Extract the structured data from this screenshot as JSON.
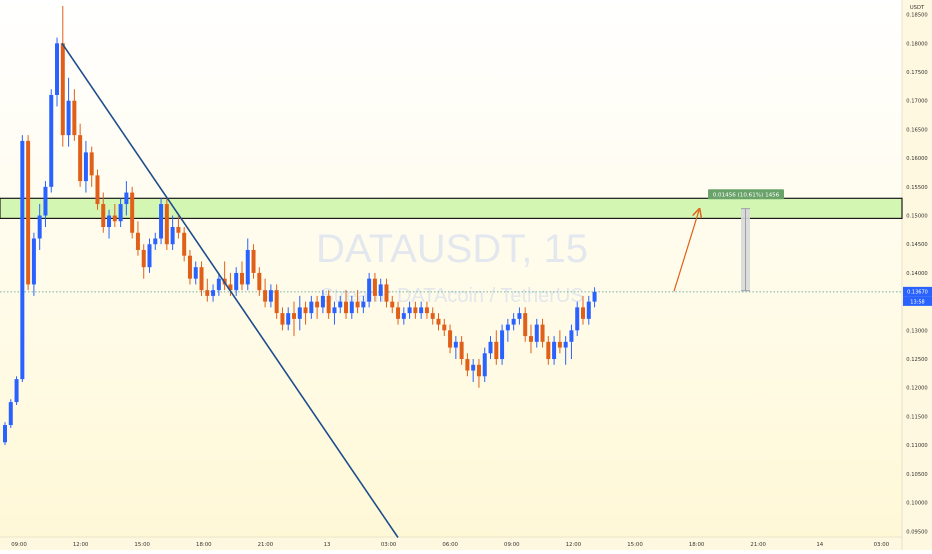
{
  "chart_data": {
    "type": "candlestick",
    "title": "",
    "xlabel": "",
    "ylabel": "",
    "watermark": {
      "symbol": "DATAUSDT, 15",
      "description": "Streamr DATAcoin / TetherUS"
    },
    "currency_label": "USDT",
    "ylim": [
      0.094,
      0.1865
    ],
    "y_ticks": [
      "0.18500",
      "0.18000",
      "0.17500",
      "0.17000",
      "0.16500",
      "0.16000",
      "0.15500",
      "0.15000",
      "0.14500",
      "0.14000",
      "0.13500",
      "0.13000",
      "0.12500",
      "0.12000",
      "0.11500",
      "0.11000",
      "0.10500",
      "0.10000",
      "0.09500"
    ],
    "x_ticks": [
      "09:00",
      "12:00",
      "15:00",
      "18:00",
      "21:00",
      "13",
      "03:00",
      "06:00",
      "09:00",
      "12:00",
      "15:00",
      "18:00",
      "21:00",
      "14",
      "03:00"
    ],
    "current_price": {
      "label": "0.13670",
      "countdown": "13:58"
    },
    "resistance_zone": {
      "low": 0.1495,
      "high": 0.153
    },
    "measure_label": "0.01456 (10.61%) 1456",
    "colors": {
      "up": "#2962ff",
      "down": "#e0601a",
      "zone_fill": "#ccf5a8",
      "zone_border": "#1a1a1a",
      "trendline": "#1f4e8c",
      "arrow": "#e0601a",
      "price_line": "#4a9a9a",
      "bg_top": "#ffffff",
      "bg_bottom": "#fff8d6",
      "measure_fill": "#6aa36a"
    },
    "candles": [
      {
        "o": 0.1105,
        "h": 0.114,
        "l": 0.11,
        "c": 0.1135
      },
      {
        "o": 0.1135,
        "h": 0.118,
        "l": 0.113,
        "c": 0.1175
      },
      {
        "o": 0.1175,
        "h": 0.122,
        "l": 0.117,
        "c": 0.1215
      },
      {
        "o": 0.1215,
        "h": 0.164,
        "l": 0.121,
        "c": 0.163
      },
      {
        "o": 0.163,
        "h": 0.164,
        "l": 0.137,
        "c": 0.138
      },
      {
        "o": 0.138,
        "h": 0.147,
        "l": 0.136,
        "c": 0.146
      },
      {
        "o": 0.146,
        "h": 0.152,
        "l": 0.144,
        "c": 0.15
      },
      {
        "o": 0.15,
        "h": 0.156,
        "l": 0.148,
        "c": 0.155
      },
      {
        "o": 0.155,
        "h": 0.172,
        "l": 0.154,
        "c": 0.171
      },
      {
        "o": 0.171,
        "h": 0.181,
        "l": 0.169,
        "c": 0.18
      },
      {
        "o": 0.18,
        "h": 0.1865,
        "l": 0.162,
        "c": 0.164
      },
      {
        "o": 0.164,
        "h": 0.174,
        "l": 0.162,
        "c": 0.17
      },
      {
        "o": 0.17,
        "h": 0.172,
        "l": 0.163,
        "c": 0.164
      },
      {
        "o": 0.164,
        "h": 0.166,
        "l": 0.155,
        "c": 0.156
      },
      {
        "o": 0.156,
        "h": 0.163,
        "l": 0.154,
        "c": 0.161
      },
      {
        "o": 0.161,
        "h": 0.162,
        "l": 0.155,
        "c": 0.157
      },
      {
        "o": 0.157,
        "h": 0.158,
        "l": 0.151,
        "c": 0.152
      },
      {
        "o": 0.152,
        "h": 0.154,
        "l": 0.147,
        "c": 0.148
      },
      {
        "o": 0.148,
        "h": 0.151,
        "l": 0.146,
        "c": 0.15
      },
      {
        "o": 0.15,
        "h": 0.152,
        "l": 0.148,
        "c": 0.149
      },
      {
        "o": 0.149,
        "h": 0.153,
        "l": 0.148,
        "c": 0.152
      },
      {
        "o": 0.152,
        "h": 0.156,
        "l": 0.15,
        "c": 0.154
      },
      {
        "o": 0.154,
        "h": 0.155,
        "l": 0.146,
        "c": 0.147
      },
      {
        "o": 0.147,
        "h": 0.149,
        "l": 0.143,
        "c": 0.144
      },
      {
        "o": 0.144,
        "h": 0.145,
        "l": 0.139,
        "c": 0.141
      },
      {
        "o": 0.141,
        "h": 0.146,
        "l": 0.14,
        "c": 0.145
      },
      {
        "o": 0.145,
        "h": 0.147,
        "l": 0.144,
        "c": 0.146
      },
      {
        "o": 0.146,
        "h": 0.153,
        "l": 0.145,
        "c": 0.152
      },
      {
        "o": 0.152,
        "h": 0.153,
        "l": 0.144,
        "c": 0.145
      },
      {
        "o": 0.145,
        "h": 0.15,
        "l": 0.144,
        "c": 0.148
      },
      {
        "o": 0.148,
        "h": 0.15,
        "l": 0.146,
        "c": 0.147
      },
      {
        "o": 0.147,
        "h": 0.148,
        "l": 0.142,
        "c": 0.143
      },
      {
        "o": 0.143,
        "h": 0.144,
        "l": 0.138,
        "c": 0.139
      },
      {
        "o": 0.139,
        "h": 0.142,
        "l": 0.138,
        "c": 0.141
      },
      {
        "o": 0.141,
        "h": 0.142,
        "l": 0.136,
        "c": 0.137
      },
      {
        "o": 0.137,
        "h": 0.139,
        "l": 0.135,
        "c": 0.136
      },
      {
        "o": 0.136,
        "h": 0.138,
        "l": 0.135,
        "c": 0.137
      },
      {
        "o": 0.137,
        "h": 0.14,
        "l": 0.136,
        "c": 0.139
      },
      {
        "o": 0.139,
        "h": 0.142,
        "l": 0.137,
        "c": 0.138
      },
      {
        "o": 0.138,
        "h": 0.14,
        "l": 0.136,
        "c": 0.137
      },
      {
        "o": 0.137,
        "h": 0.141,
        "l": 0.136,
        "c": 0.14
      },
      {
        "o": 0.14,
        "h": 0.142,
        "l": 0.137,
        "c": 0.138
      },
      {
        "o": 0.138,
        "h": 0.146,
        "l": 0.137,
        "c": 0.144
      },
      {
        "o": 0.144,
        "h": 0.145,
        "l": 0.139,
        "c": 0.14
      },
      {
        "o": 0.14,
        "h": 0.141,
        "l": 0.136,
        "c": 0.137
      },
      {
        "o": 0.137,
        "h": 0.139,
        "l": 0.134,
        "c": 0.135
      },
      {
        "o": 0.135,
        "h": 0.138,
        "l": 0.134,
        "c": 0.137
      },
      {
        "o": 0.137,
        "h": 0.138,
        "l": 0.132,
        "c": 0.133
      },
      {
        "o": 0.133,
        "h": 0.134,
        "l": 0.13,
        "c": 0.131
      },
      {
        "o": 0.131,
        "h": 0.134,
        "l": 0.13,
        "c": 0.133
      },
      {
        "o": 0.133,
        "h": 0.135,
        "l": 0.129,
        "c": 0.132
      },
      {
        "o": 0.132,
        "h": 0.136,
        "l": 0.13,
        "c": 0.134
      },
      {
        "o": 0.134,
        "h": 0.135,
        "l": 0.131,
        "c": 0.133
      },
      {
        "o": 0.133,
        "h": 0.136,
        "l": 0.132,
        "c": 0.135
      },
      {
        "o": 0.135,
        "h": 0.136,
        "l": 0.132,
        "c": 0.134
      },
      {
        "o": 0.134,
        "h": 0.137,
        "l": 0.133,
        "c": 0.136
      },
      {
        "o": 0.136,
        "h": 0.137,
        "l": 0.132,
        "c": 0.133
      },
      {
        "o": 0.133,
        "h": 0.135,
        "l": 0.131,
        "c": 0.134
      },
      {
        "o": 0.134,
        "h": 0.136,
        "l": 0.133,
        "c": 0.135
      },
      {
        "o": 0.135,
        "h": 0.137,
        "l": 0.132,
        "c": 0.133
      },
      {
        "o": 0.133,
        "h": 0.136,
        "l": 0.132,
        "c": 0.135
      },
      {
        "o": 0.135,
        "h": 0.137,
        "l": 0.133,
        "c": 0.134
      },
      {
        "o": 0.134,
        "h": 0.136,
        "l": 0.133,
        "c": 0.135
      },
      {
        "o": 0.135,
        "h": 0.14,
        "l": 0.134,
        "c": 0.139
      },
      {
        "o": 0.139,
        "h": 0.14,
        "l": 0.135,
        "c": 0.136
      },
      {
        "o": 0.136,
        "h": 0.139,
        "l": 0.135,
        "c": 0.138
      },
      {
        "o": 0.138,
        "h": 0.139,
        "l": 0.134,
        "c": 0.135
      },
      {
        "o": 0.135,
        "h": 0.136,
        "l": 0.133,
        "c": 0.134
      },
      {
        "o": 0.134,
        "h": 0.135,
        "l": 0.131,
        "c": 0.132
      },
      {
        "o": 0.132,
        "h": 0.134,
        "l": 0.131,
        "c": 0.133
      },
      {
        "o": 0.133,
        "h": 0.135,
        "l": 0.132,
        "c": 0.134
      },
      {
        "o": 0.134,
        "h": 0.135,
        "l": 0.132,
        "c": 0.133
      },
      {
        "o": 0.133,
        "h": 0.135,
        "l": 0.132,
        "c": 0.134
      },
      {
        "o": 0.134,
        "h": 0.135,
        "l": 0.132,
        "c": 0.133
      },
      {
        "o": 0.133,
        "h": 0.134,
        "l": 0.131,
        "c": 0.132
      },
      {
        "o": 0.132,
        "h": 0.133,
        "l": 0.13,
        "c": 0.131
      },
      {
        "o": 0.131,
        "h": 0.132,
        "l": 0.129,
        "c": 0.13
      },
      {
        "o": 0.13,
        "h": 0.131,
        "l": 0.126,
        "c": 0.127
      },
      {
        "o": 0.127,
        "h": 0.129,
        "l": 0.125,
        "c": 0.128
      },
      {
        "o": 0.128,
        "h": 0.129,
        "l": 0.124,
        "c": 0.125
      },
      {
        "o": 0.125,
        "h": 0.126,
        "l": 0.122,
        "c": 0.123
      },
      {
        "o": 0.123,
        "h": 0.125,
        "l": 0.121,
        "c": 0.124
      },
      {
        "o": 0.124,
        "h": 0.125,
        "l": 0.12,
        "c": 0.122
      },
      {
        "o": 0.122,
        "h": 0.127,
        "l": 0.121,
        "c": 0.126
      },
      {
        "o": 0.126,
        "h": 0.129,
        "l": 0.125,
        "c": 0.128
      },
      {
        "o": 0.128,
        "h": 0.13,
        "l": 0.124,
        "c": 0.125
      },
      {
        "o": 0.125,
        "h": 0.131,
        "l": 0.124,
        "c": 0.13
      },
      {
        "o": 0.13,
        "h": 0.132,
        "l": 0.128,
        "c": 0.131
      },
      {
        "o": 0.131,
        "h": 0.133,
        "l": 0.13,
        "c": 0.132
      },
      {
        "o": 0.132,
        "h": 0.134,
        "l": 0.131,
        "c": 0.133
      },
      {
        "o": 0.133,
        "h": 0.134,
        "l": 0.128,
        "c": 0.129
      },
      {
        "o": 0.129,
        "h": 0.131,
        "l": 0.126,
        "c": 0.128
      },
      {
        "o": 0.128,
        "h": 0.132,
        "l": 0.127,
        "c": 0.131
      },
      {
        "o": 0.131,
        "h": 0.132,
        "l": 0.127,
        "c": 0.128
      },
      {
        "o": 0.128,
        "h": 0.129,
        "l": 0.124,
        "c": 0.125
      },
      {
        "o": 0.125,
        "h": 0.129,
        "l": 0.124,
        "c": 0.128
      },
      {
        "o": 0.128,
        "h": 0.13,
        "l": 0.126,
        "c": 0.127
      },
      {
        "o": 0.127,
        "h": 0.129,
        "l": 0.124,
        "c": 0.128
      },
      {
        "o": 0.128,
        "h": 0.131,
        "l": 0.125,
        "c": 0.13
      },
      {
        "o": 0.13,
        "h": 0.135,
        "l": 0.129,
        "c": 0.134
      },
      {
        "o": 0.134,
        "h": 0.136,
        "l": 0.131,
        "c": 0.132
      },
      {
        "o": 0.132,
        "h": 0.136,
        "l": 0.131,
        "c": 0.135
      },
      {
        "o": 0.135,
        "h": 0.1375,
        "l": 0.134,
        "c": 0.1367
      }
    ]
  }
}
